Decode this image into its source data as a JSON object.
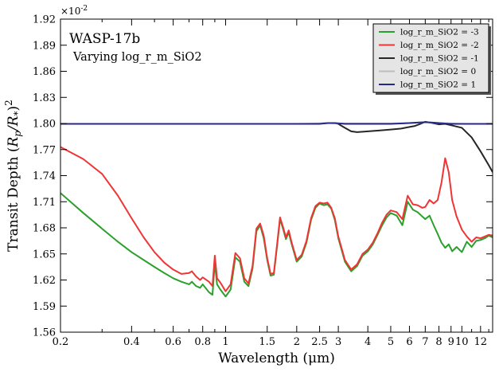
{
  "chart_data": {
    "type": "line",
    "title": "",
    "xlabel": "Wavelength (μm)",
    "ylabel": "Transit Depth (R_p/R_*)^2",
    "y_multiplier_label": "×10^-2",
    "x_scale": "log",
    "xlim": [
      0.2,
      13.5
    ],
    "ylim": [
      1.56,
      1.92
    ],
    "x_ticks": [
      0.2,
      0.4,
      0.6,
      0.8,
      1,
      1.5,
      2,
      2.5,
      3,
      4,
      5,
      6,
      7,
      8,
      9,
      10,
      12
    ],
    "x_tick_labels": [
      "0.2",
      "0.4",
      "0.6",
      "0.8",
      "1",
      "1.5",
      "2",
      "2.5",
      "3",
      "4",
      "5",
      "6",
      "7",
      "8",
      "9",
      "10",
      "12"
    ],
    "y_ticks": [
      1.56,
      1.59,
      1.62,
      1.65,
      1.68,
      1.71,
      1.74,
      1.77,
      1.8,
      1.83,
      1.86,
      1.89,
      1.92
    ],
    "y_tick_labels": [
      "1.56",
      "1.59",
      "1.62",
      "1.65",
      "1.68",
      "1.71",
      "1.74",
      "1.77",
      "1.80",
      "1.83",
      "1.86",
      "1.89",
      "1.92"
    ],
    "grid": false,
    "legend_position": "top-right",
    "annotations": {
      "planet": "WASP-17b",
      "subtitle": "Varying log_r_m_SiO2"
    },
    "series": [
      {
        "name": "log_r_m_SiO2 = -3",
        "color": "#2ca02c",
        "x": [
          0.2,
          0.25,
          0.3,
          0.35,
          0.4,
          0.45,
          0.5,
          0.55,
          0.6,
          0.65,
          0.7,
          0.72,
          0.75,
          0.78,
          0.8,
          0.85,
          0.88,
          0.9,
          0.92,
          0.95,
          1.0,
          1.05,
          1.1,
          1.15,
          1.2,
          1.25,
          1.3,
          1.35,
          1.4,
          1.45,
          1.5,
          1.55,
          1.6,
          1.65,
          1.7,
          1.75,
          1.8,
          1.85,
          1.9,
          2.0,
          2.1,
          2.2,
          2.3,
          2.4,
          2.5,
          2.6,
          2.7,
          2.8,
          2.9,
          3.0,
          3.2,
          3.4,
          3.6,
          3.8,
          4.0,
          4.2,
          4.4,
          4.6,
          4.8,
          5.0,
          5.3,
          5.6,
          5.9,
          6.2,
          6.5,
          6.8,
          7.0,
          7.3,
          7.6,
          7.9,
          8.2,
          8.5,
          8.8,
          9.1,
          9.5,
          10.0,
          10.5,
          11.0,
          11.5,
          12.0,
          12.5,
          13.0,
          13.5
        ],
        "values": [
          1.72,
          1.697,
          1.679,
          1.664,
          1.652,
          1.643,
          1.635,
          1.628,
          1.622,
          1.618,
          1.615,
          1.618,
          1.613,
          1.611,
          1.615,
          1.606,
          1.603,
          1.64,
          1.615,
          1.609,
          1.601,
          1.609,
          1.646,
          1.641,
          1.618,
          1.613,
          1.633,
          1.676,
          1.683,
          1.668,
          1.643,
          1.625,
          1.626,
          1.658,
          1.69,
          1.679,
          1.667,
          1.675,
          1.662,
          1.641,
          1.647,
          1.663,
          1.689,
          1.703,
          1.708,
          1.706,
          1.707,
          1.702,
          1.689,
          1.668,
          1.641,
          1.63,
          1.636,
          1.648,
          1.653,
          1.661,
          1.672,
          1.683,
          1.692,
          1.697,
          1.694,
          1.683,
          1.71,
          1.701,
          1.698,
          1.693,
          1.69,
          1.694,
          1.683,
          1.673,
          1.663,
          1.657,
          1.661,
          1.653,
          1.658,
          1.652,
          1.664,
          1.658,
          1.665,
          1.666,
          1.668,
          1.671,
          1.669
        ]
      },
      {
        "name": "log_r_m_SiO2 = -2",
        "color": "#ef3535",
        "x": [
          0.2,
          0.25,
          0.3,
          0.35,
          0.4,
          0.45,
          0.5,
          0.55,
          0.6,
          0.65,
          0.7,
          0.72,
          0.75,
          0.78,
          0.8,
          0.85,
          0.88,
          0.9,
          0.92,
          0.95,
          1.0,
          1.05,
          1.1,
          1.15,
          1.2,
          1.25,
          1.3,
          1.35,
          1.4,
          1.45,
          1.5,
          1.55,
          1.6,
          1.65,
          1.7,
          1.75,
          1.8,
          1.85,
          1.9,
          2.0,
          2.1,
          2.2,
          2.3,
          2.4,
          2.5,
          2.6,
          2.7,
          2.8,
          2.9,
          3.0,
          3.2,
          3.4,
          3.6,
          3.8,
          4.0,
          4.2,
          4.4,
          4.6,
          4.8,
          5.0,
          5.3,
          5.6,
          5.9,
          6.2,
          6.5,
          6.8,
          7.0,
          7.3,
          7.6,
          7.9,
          8.2,
          8.5,
          8.8,
          9.1,
          9.5,
          10.0,
          10.5,
          11.0,
          11.5,
          12.0,
          12.5,
          13.0,
          13.5
        ],
        "values": [
          1.773,
          1.759,
          1.742,
          1.717,
          1.691,
          1.669,
          1.652,
          1.64,
          1.632,
          1.627,
          1.628,
          1.63,
          1.624,
          1.62,
          1.623,
          1.618,
          1.613,
          1.648,
          1.622,
          1.617,
          1.607,
          1.615,
          1.651,
          1.645,
          1.622,
          1.616,
          1.636,
          1.679,
          1.685,
          1.671,
          1.645,
          1.627,
          1.628,
          1.66,
          1.692,
          1.681,
          1.669,
          1.677,
          1.664,
          1.643,
          1.649,
          1.665,
          1.691,
          1.705,
          1.709,
          1.708,
          1.709,
          1.703,
          1.691,
          1.67,
          1.643,
          1.632,
          1.638,
          1.65,
          1.655,
          1.663,
          1.674,
          1.686,
          1.695,
          1.7,
          1.698,
          1.69,
          1.717,
          1.707,
          1.706,
          1.703,
          1.704,
          1.712,
          1.708,
          1.712,
          1.732,
          1.76,
          1.744,
          1.712,
          1.693,
          1.678,
          1.67,
          1.664,
          1.669,
          1.668,
          1.67,
          1.672,
          1.671
        ]
      },
      {
        "name": "log_r_m_SiO2 = -1",
        "color": "#262626",
        "x": [
          0.2,
          0.4,
          0.6,
          0.8,
          1.0,
          1.5,
          2.0,
          2.4,
          2.7,
          2.9,
          3.0,
          3.2,
          3.4,
          3.6,
          3.8,
          4.0,
          4.5,
          5.0,
          5.5,
          6.0,
          6.3,
          6.6,
          7.0,
          7.5,
          8.0,
          8.5,
          9.0,
          10.0,
          11.0,
          12.0,
          13.0,
          13.5
        ],
        "values": [
          1.7995,
          1.7995,
          1.7995,
          1.7995,
          1.7995,
          1.7995,
          1.7995,
          1.7995,
          1.8005,
          1.8005,
          1.7995,
          1.795,
          1.791,
          1.79,
          1.7905,
          1.791,
          1.792,
          1.793,
          1.794,
          1.796,
          1.797,
          1.799,
          1.802,
          1.8005,
          1.799,
          1.7995,
          1.798,
          1.795,
          1.784,
          1.768,
          1.752,
          1.744
        ]
      },
      {
        "name": "log_r_m_SiO2 = 0",
        "color": "#bdbdbd",
        "x": [
          0.2,
          1.0,
          2.0,
          2.7,
          3.0,
          5.0,
          6.0,
          7.0,
          8.0,
          10.0,
          13.5
        ],
        "values": [
          1.7995,
          1.7995,
          1.7995,
          1.8005,
          1.8,
          1.8,
          1.8005,
          1.8015,
          1.8005,
          1.7995,
          1.7995
        ]
      },
      {
        "name": "log_r_m_SiO2 = 1",
        "color": "#27298a",
        "x": [
          0.2,
          0.5,
          1.0,
          1.5,
          2.0,
          2.5,
          2.7,
          2.9,
          3.2,
          4.0,
          5.0,
          6.0,
          6.5,
          7.0,
          7.5,
          8.0,
          9.0,
          10.0,
          11.0,
          12.0,
          13.5
        ],
        "values": [
          1.7995,
          1.7995,
          1.7995,
          1.7995,
          1.7995,
          1.7995,
          1.8005,
          1.8005,
          1.7995,
          1.7995,
          1.7995,
          1.8005,
          1.801,
          1.8015,
          1.801,
          1.8005,
          1.7995,
          1.7995,
          1.7995,
          1.7995,
          1.7995
        ]
      }
    ]
  }
}
